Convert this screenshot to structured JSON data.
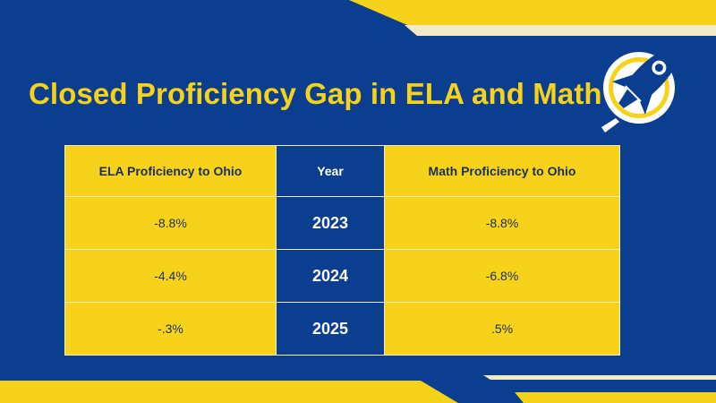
{
  "slide": {
    "title": "Closed Proficiency Gap in ELA and Math"
  },
  "table": {
    "headers": [
      "ELA Proficiency  to Ohio",
      "Year",
      "Math Proficiency to Ohio"
    ],
    "rows": [
      {
        "ela": "-8.8%",
        "year": "2023",
        "math": "-8.8%"
      },
      {
        "ela": "-4.4%",
        "year": "2024",
        "math": "-6.8%"
      },
      {
        "ela": "-.3%",
        "year": "2025",
        "math": ".5%"
      }
    ]
  },
  "colors": {
    "navy": "#0b3e8f",
    "gold": "#f7d21a",
    "cream": "#f2ebc8"
  }
}
